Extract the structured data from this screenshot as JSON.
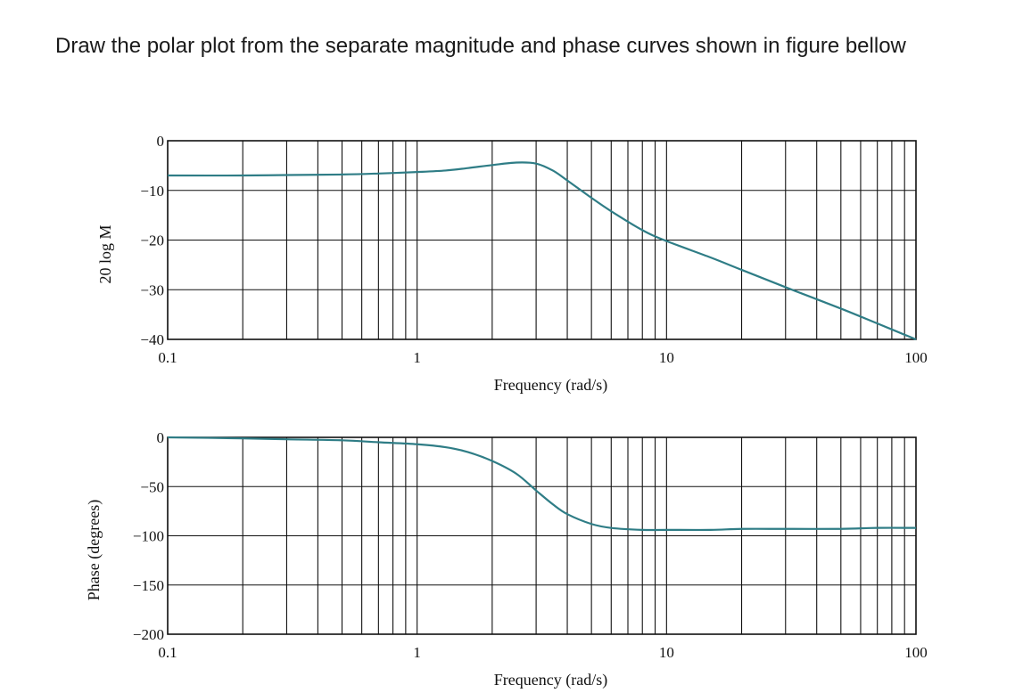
{
  "question": {
    "text": "Draw the polar plot from the separate magnitude and phase curves shown in figure bellow"
  },
  "style": {
    "curve_color": "#2f7d86",
    "grid_color": "#111111"
  },
  "chart_data": [
    {
      "type": "line",
      "x_scale": "log",
      "xlabel": "Frequency (rad/s)",
      "ylabel": "20 log M",
      "xlim": [
        0.1,
        100
      ],
      "ylim": [
        -40,
        0
      ],
      "x_ticks": [
        "0.1",
        "1",
        "10",
        "100"
      ],
      "y_ticks": [
        "0",
        "−10",
        "−20",
        "−30",
        "−40"
      ],
      "y_tick_values": [
        0,
        -10,
        -20,
        -30,
        -40
      ],
      "grid": true,
      "series": [
        {
          "x": [
            0.1,
            0.2,
            0.3,
            0.5,
            0.7,
            1.0,
            1.3,
            1.6,
            2.0,
            2.5,
            3.0,
            3.5,
            4.0,
            5.0,
            6.0,
            8.0,
            10.0,
            15.0,
            20.0,
            30.0,
            50.0,
            70.0,
            100.0
          ],
          "y": [
            -7.0,
            -7.0,
            -6.9,
            -6.8,
            -6.6,
            -6.3,
            -6.0,
            -5.5,
            -4.9,
            -4.4,
            -4.6,
            -6.0,
            -8.0,
            -11.5,
            -14.2,
            -18.0,
            -20.2,
            -23.5,
            -26.0,
            -29.5,
            -33.8,
            -36.8,
            -40.0
          ]
        }
      ]
    },
    {
      "type": "line",
      "x_scale": "log",
      "xlabel": "Frequency (rad/s)",
      "ylabel": "Phase (degrees)",
      "xlim": [
        0.1,
        100
      ],
      "ylim": [
        -200,
        0
      ],
      "x_ticks": [
        "0.1",
        "1",
        "10",
        "100"
      ],
      "y_ticks": [
        "0",
        "−50",
        "−100",
        "−150",
        "−200"
      ],
      "y_tick_values": [
        0,
        -50,
        -100,
        -150,
        -200
      ],
      "grid": true,
      "series": [
        {
          "x": [
            0.1,
            0.2,
            0.3,
            0.5,
            0.7,
            1.0,
            1.3,
            1.6,
            2.0,
            2.5,
            3.0,
            3.5,
            4.0,
            5.0,
            6.0,
            8.0,
            10.0,
            15.0,
            20.0,
            30.0,
            50.0,
            70.0,
            100.0
          ],
          "y": [
            0,
            -1,
            -2,
            -3,
            -5,
            -7,
            -10,
            -15,
            -24,
            -37,
            -54,
            -68,
            -78,
            -88,
            -92,
            -94,
            -94,
            -94,
            -93,
            -93,
            -93,
            -92,
            -92
          ]
        }
      ]
    }
  ]
}
